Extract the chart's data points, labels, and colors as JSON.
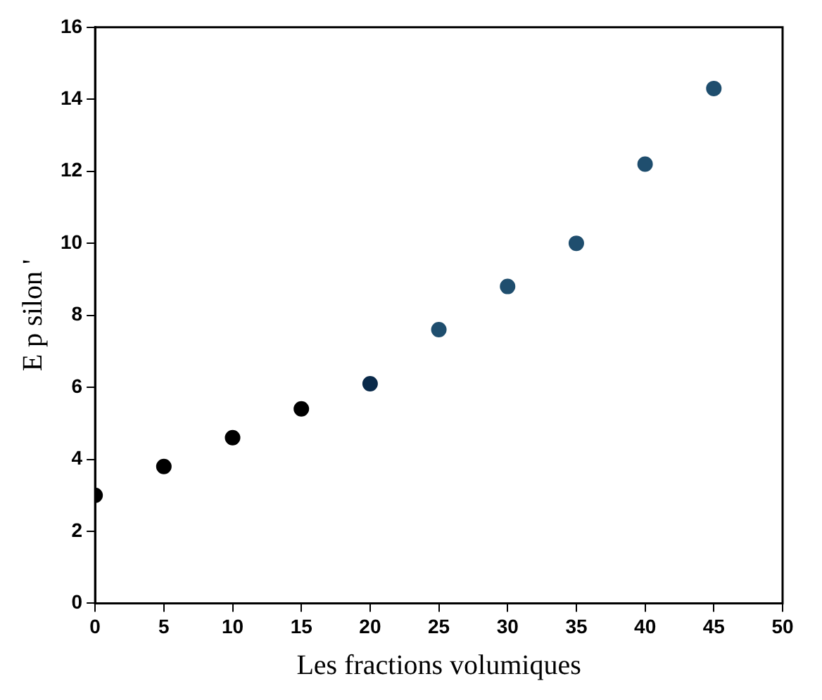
{
  "chart_data": {
    "type": "scatter",
    "xlabel": "Les fractions volumiques",
    "ylabel": "E p silon '",
    "x": [
      0,
      5,
      10,
      15,
      20,
      25,
      30,
      35,
      40,
      45
    ],
    "values": [
      3.0,
      3.8,
      4.6,
      5.4,
      6.1,
      7.6,
      8.8,
      10.0,
      12.2,
      14.3
    ],
    "colors": [
      "#000000",
      "#000000",
      "#000000",
      "#000000",
      "#0a2a4a",
      "#1f4e6e",
      "#1f4e6e",
      "#1f4e6e",
      "#1f4e6e",
      "#1f4e6e"
    ],
    "xlim": [
      0,
      50
    ],
    "xticks": [
      0,
      5,
      10,
      15,
      20,
      25,
      30,
      35,
      40,
      45,
      50
    ],
    "ylim": [
      0,
      16
    ],
    "yticks": [
      0,
      2,
      4,
      6,
      8,
      10,
      12,
      14,
      16
    ],
    "grid": false,
    "legend": false,
    "marker": "circle"
  }
}
